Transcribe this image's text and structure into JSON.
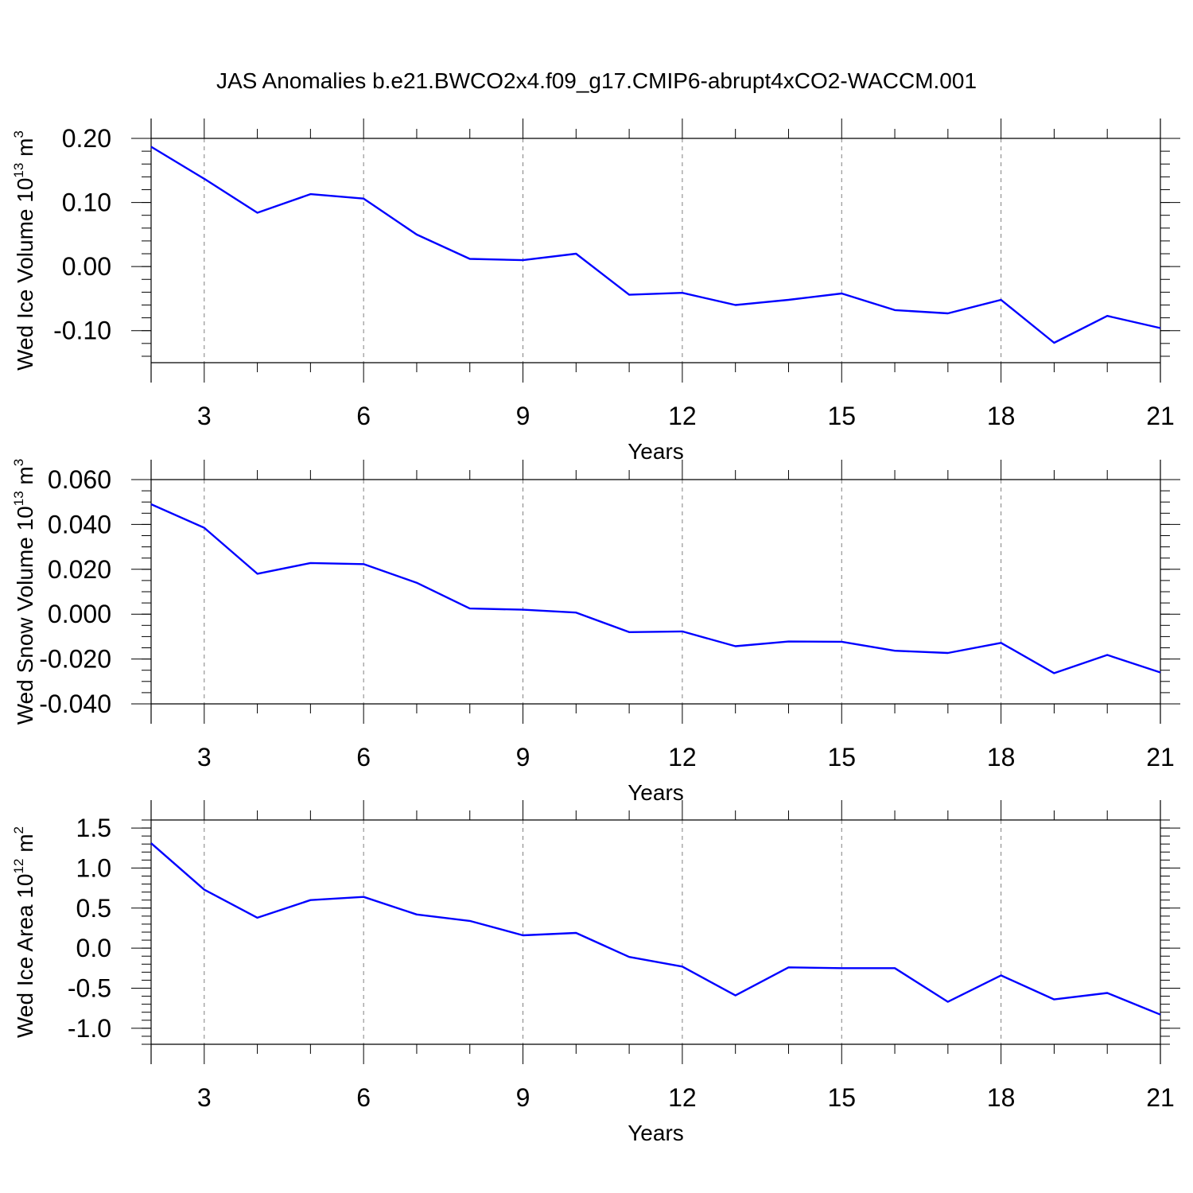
{
  "title": "JAS Anomalies b.e21.BWCO2x4.f09_g17.CMIP6-abrupt4xCO2-WACCM.001",
  "colors": {
    "line": "#0000ff",
    "axis": "#000000",
    "grid": "#808080",
    "background": "#ffffff"
  },
  "chart_data": [
    {
      "type": "line",
      "ylabel": {
        "main": "Wed Ice Volume 10",
        "exp": "13",
        "unit": " m",
        "unit_exp": "3"
      },
      "xlabel": "Years",
      "xlim": [
        2,
        21
      ],
      "ylim": [
        -0.15,
        0.2
      ],
      "xticks": [
        3,
        6,
        9,
        12,
        15,
        18,
        21
      ],
      "xtick_labels": [
        "3",
        "6",
        "9",
        "12",
        "15",
        "18",
        "21"
      ],
      "xminor_step": 1,
      "yticks": [
        0.2,
        0.1,
        0.0,
        -0.1
      ],
      "ytick_labels": [
        "0.20",
        "0.10",
        "0.00",
        "-0.10"
      ],
      "yminor_step": 0.02,
      "grid": "vertical-dashed",
      "x": [
        2,
        3,
        4,
        5,
        6,
        7,
        8,
        9,
        10,
        11,
        12,
        13,
        14,
        15,
        16,
        17,
        18,
        19,
        20,
        21
      ],
      "values": [
        0.187,
        0.137,
        0.084,
        0.113,
        0.106,
        0.05,
        0.012,
        0.01,
        0.02,
        -0.044,
        -0.041,
        -0.06,
        -0.052,
        -0.042,
        -0.068,
        -0.073,
        -0.052,
        -0.119,
        -0.077,
        -0.096
      ]
    },
    {
      "type": "line",
      "ylabel": {
        "main": "Wed Snow Volume 10",
        "exp": "13",
        "unit": " m",
        "unit_exp": "3"
      },
      "xlabel": "Years",
      "xlim": [
        2,
        21
      ],
      "ylim": [
        -0.04,
        0.06
      ],
      "xticks": [
        3,
        6,
        9,
        12,
        15,
        18,
        21
      ],
      "xtick_labels": [
        "3",
        "6",
        "9",
        "12",
        "15",
        "18",
        "21"
      ],
      "xminor_step": 1,
      "yticks": [
        0.06,
        0.04,
        0.02,
        0.0,
        -0.02,
        -0.04
      ],
      "ytick_labels": [
        "0.060",
        "0.040",
        "0.020",
        "0.000",
        "-0.020",
        "-0.040"
      ],
      "yminor_step": 0.005,
      "grid": "vertical-dashed",
      "x": [
        2,
        3,
        4,
        5,
        6,
        7,
        8,
        9,
        10,
        11,
        12,
        13,
        14,
        15,
        16,
        17,
        18,
        19,
        20,
        21
      ],
      "values": [
        0.049,
        0.0385,
        0.018,
        0.0228,
        0.0223,
        0.014,
        0.0025,
        0.002,
        0.0007,
        -0.008,
        -0.0077,
        -0.0143,
        -0.0122,
        -0.0123,
        -0.0163,
        -0.0173,
        -0.0128,
        -0.0263,
        -0.0182,
        -0.026
      ]
    },
    {
      "type": "line",
      "ylabel": {
        "main": "Wed Ice Area 10",
        "exp": "12",
        "unit": " m",
        "unit_exp": "2"
      },
      "xlabel": "Years",
      "xlim": [
        2,
        21
      ],
      "ylim": [
        -1.2,
        1.6
      ],
      "xticks": [
        3,
        6,
        9,
        12,
        15,
        18,
        21
      ],
      "xtick_labels": [
        "3",
        "6",
        "9",
        "12",
        "15",
        "18",
        "21"
      ],
      "xminor_step": 1,
      "yticks": [
        1.5,
        1.0,
        0.5,
        0.0,
        -0.5,
        -1.0
      ],
      "ytick_labels": [
        "1.5",
        "1.0",
        "0.5",
        "0.0",
        "-0.5",
        "-1.0"
      ],
      "yminor_step": 0.1,
      "grid": "vertical-dashed",
      "x": [
        2,
        3,
        4,
        5,
        6,
        7,
        8,
        9,
        10,
        11,
        12,
        13,
        14,
        15,
        16,
        17,
        18,
        19,
        20,
        21
      ],
      "values": [
        1.31,
        0.73,
        0.38,
        0.6,
        0.64,
        0.42,
        0.34,
        0.16,
        0.19,
        -0.11,
        -0.23,
        -0.59,
        -0.24,
        -0.25,
        -0.25,
        -0.67,
        -0.34,
        -0.64,
        -0.56,
        -0.83
      ]
    }
  ]
}
